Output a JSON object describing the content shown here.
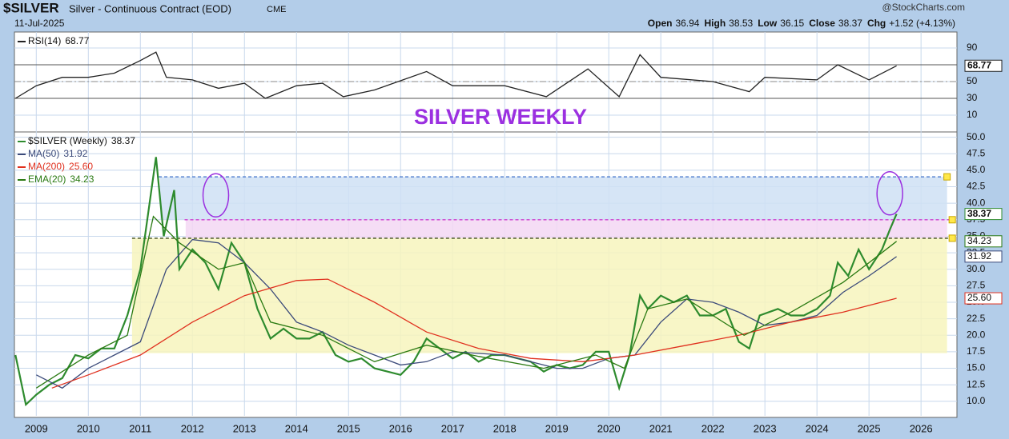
{
  "header": {
    "symbol": "$SILVER",
    "description": "Silver - Continuous Contract (EOD)",
    "exchange": "CME",
    "source": "@StockCharts.com",
    "date": "11-Jul-2025",
    "quote": [
      {
        "label": "Open",
        "text": "36.94"
      },
      {
        "label": "High",
        "text": "38.53"
      },
      {
        "label": "Low",
        "text": "36.15"
      },
      {
        "label": "Close",
        "text": "38.37"
      },
      {
        "label": "Chg",
        "text": "+1.52 (+4.13%)"
      }
    ]
  },
  "chart_data": [
    {
      "type": "line",
      "xlim": [
        2008.58,
        2026.69
      ],
      "ylim": [
        -10,
        109
      ],
      "yticks": [
        10,
        30,
        50,
        70,
        90
      ],
      "levels": [
        {
          "value": 70,
          "color": "#555555",
          "style": "solid"
        },
        {
          "value": 30,
          "color": "#555555",
          "style": "solid"
        },
        {
          "value": 50,
          "color": "#888888",
          "style": "dashdot"
        }
      ],
      "series": [
        {
          "name": "RSI(14)",
          "color": "#222222",
          "last_label": "68.77",
          "x": [
            2008.6,
            2009,
            2009.5,
            2010,
            2010.5,
            2011,
            2011.3,
            2011.5,
            2012,
            2012.5,
            2013,
            2013.4,
            2014,
            2014.5,
            2014.9,
            2015.5,
            2016.5,
            2017,
            2018,
            2018.8,
            2019.6,
            2020.2,
            2020.6,
            2021,
            2022,
            2022.7,
            2023,
            2024,
            2024.4,
            2025,
            2025.53
          ],
          "values": [
            30,
            45,
            55,
            55,
            60,
            75,
            85,
            55,
            52,
            42,
            48,
            30,
            45,
            48,
            32,
            40,
            62,
            45,
            45,
            32,
            65,
            32,
            82,
            55,
            50,
            38,
            55,
            52,
            70,
            52,
            68.77
          ]
        }
      ]
    },
    {
      "type": "line",
      "title": "SILVER WEEKLY",
      "xlim": [
        2008.58,
        2026.69
      ],
      "ylim": [
        7.8,
        50.8
      ],
      "xticks": [
        2009,
        2010,
        2011,
        2012,
        2013,
        2014,
        2015,
        2016,
        2017,
        2018,
        2019,
        2020,
        2021,
        2022,
        2023,
        2024,
        2025,
        2026
      ],
      "yticks": [
        {
          "value": 10,
          "label": "10.0"
        },
        {
          "value": 12.5,
          "label": "12.5"
        },
        {
          "value": 15,
          "label": "15.0"
        },
        {
          "value": 17.5,
          "label": "17.5"
        },
        {
          "value": 20,
          "label": "20.0"
        },
        {
          "value": 22.5,
          "label": "22.5"
        },
        {
          "value": 25,
          "label": "25.0"
        },
        {
          "value": 27.5,
          "label": "27.5"
        },
        {
          "value": 30,
          "label": "30.0"
        },
        {
          "value": 32.5,
          "label": "32.5"
        },
        {
          "value": 35,
          "label": "35.0"
        },
        {
          "value": 37.5,
          "label": "37.5"
        },
        {
          "value": 40,
          "label": "40.0"
        },
        {
          "value": 42.5,
          "label": "42.5"
        },
        {
          "value": 45,
          "label": "45.0"
        },
        {
          "value": 47.5,
          "label": "47.5"
        },
        {
          "value": 50,
          "label": "50.0"
        }
      ],
      "zones": [
        {
          "from_x": 2010.84,
          "to_x": 2026.5,
          "low": 17.3,
          "high": 34.7,
          "color": "#f7f4bd"
        },
        {
          "from_x": 2011.87,
          "to_x": 2026.5,
          "low": 34.7,
          "high": 37.5,
          "color": "#f3d7f3"
        },
        {
          "from_x": 2011.38,
          "to_x": 2026.5,
          "low": 37.5,
          "high": 44,
          "color": "#cfe0f5"
        }
      ],
      "levels": [
        {
          "value": 44,
          "from_x": 2011.35,
          "to_x": 2026.5,
          "color": "#3a6ec8",
          "style": "dashed"
        },
        {
          "value": 37.5,
          "from_x": 2011.85,
          "to_x": 2026.6,
          "color": "#d040d0",
          "style": "dashed"
        },
        {
          "value": 34.7,
          "from_x": 2010.84,
          "to_x": 2026.6,
          "color": "#3a4a1a",
          "style": "dashed"
        }
      ],
      "highlights": [
        {
          "x": 2012.45,
          "value": 41.2
        },
        {
          "x": 2025.4,
          "value": 41.5
        }
      ],
      "series": [
        {
          "name": "$SILVER (Weekly)",
          "color": "#2e8b2e",
          "last_label": "38.37",
          "x": [
            2008.6,
            2008.8,
            2009,
            2009.25,
            2009.5,
            2009.75,
            2010,
            2010.25,
            2010.5,
            2010.75,
            2011,
            2011.3,
            2011.45,
            2011.65,
            2011.75,
            2012,
            2012.25,
            2012.5,
            2012.75,
            2013,
            2013.25,
            2013.5,
            2013.75,
            2014,
            2014.25,
            2014.5,
            2014.75,
            2015,
            2015.25,
            2015.5,
            2015.75,
            2016,
            2016.25,
            2016.5,
            2016.75,
            2017,
            2017.25,
            2017.5,
            2017.75,
            2018,
            2018.25,
            2018.5,
            2018.75,
            2019,
            2019.25,
            2019.5,
            2019.75,
            2020,
            2020.2,
            2020.4,
            2020.6,
            2020.75,
            2021,
            2021.25,
            2021.5,
            2021.75,
            2022,
            2022.25,
            2022.5,
            2022.7,
            2022.9,
            2023.25,
            2023.5,
            2023.75,
            2024,
            2024.25,
            2024.4,
            2024.6,
            2024.8,
            2025,
            2025.25,
            2025.4,
            2025.53
          ],
          "values": [
            17,
            9.5,
            11,
            12.5,
            13.5,
            17,
            16.5,
            18,
            18,
            23,
            30,
            47,
            35,
            42,
            30,
            33,
            31,
            27,
            34,
            31,
            24,
            19.5,
            21,
            19.5,
            19.5,
            20.5,
            17,
            16,
            16.5,
            15,
            14.5,
            14,
            16,
            19.5,
            18,
            16.5,
            17.5,
            16,
            17,
            17,
            16.5,
            16,
            14.5,
            15.5,
            15,
            15.5,
            17.5,
            17.5,
            12,
            17,
            26,
            24,
            26,
            25,
            26,
            23,
            23,
            24,
            19,
            18,
            23,
            24,
            23,
            23,
            24,
            26,
            31,
            29,
            33,
            30,
            33,
            36,
            38.37
          ]
        },
        {
          "name": "MA(50)",
          "color": "#3b4a7a",
          "last_label": "31.92",
          "x": [
            2009,
            2009.5,
            2010,
            2010.5,
            2011,
            2011.5,
            2012,
            2012.5,
            2013,
            2013.5,
            2014,
            2014.5,
            2015,
            2015.5,
            2016,
            2016.5,
            2017,
            2018,
            2019,
            2019.5,
            2020,
            2020.5,
            2021,
            2021.5,
            2022,
            2022.5,
            2023,
            2023.5,
            2024,
            2024.5,
            2025,
            2025.53
          ],
          "values": [
            14,
            12,
            15,
            17,
            19,
            30,
            34.5,
            34,
            31,
            27,
            22,
            20.5,
            18.5,
            17,
            15.5,
            16,
            17.5,
            17,
            15,
            15,
            16.5,
            17,
            22,
            25.5,
            25,
            23.5,
            21.5,
            22,
            23,
            26.5,
            29,
            31.92
          ]
        },
        {
          "name": "MA(200)",
          "color": "#e0301e",
          "last_label": "25.60",
          "x": [
            2009.3,
            2010,
            2011,
            2012,
            2013,
            2014,
            2014.6,
            2015.5,
            2016.5,
            2017.5,
            2018.5,
            2019.5,
            2020.5,
            2021.5,
            2022.5,
            2023.5,
            2024.5,
            2025.53
          ],
          "values": [
            12,
            14,
            17,
            22,
            26,
            28.3,
            28.5,
            25,
            20.5,
            18,
            16.5,
            16,
            17,
            18.5,
            20,
            22,
            23.5,
            25.6
          ]
        },
        {
          "name": "EMA(20)",
          "color": "#2a7a12",
          "last_label": "34.23",
          "x": [
            2009,
            2010,
            2010.75,
            2011.25,
            2011.75,
            2012.5,
            2013,
            2013.5,
            2014.5,
            2015.5,
            2016.5,
            2017.5,
            2018.75,
            2019.75,
            2020.3,
            2020.75,
            2021.5,
            2022.6,
            2023.5,
            2024.5,
            2025,
            2025.53
          ],
          "values": [
            12,
            17,
            20,
            38,
            34,
            30,
            31,
            22,
            20,
            16,
            18.5,
            16.8,
            15,
            17,
            15,
            24,
            25.5,
            20,
            23.5,
            28,
            31,
            34.23
          ]
        }
      ]
    }
  ]
}
